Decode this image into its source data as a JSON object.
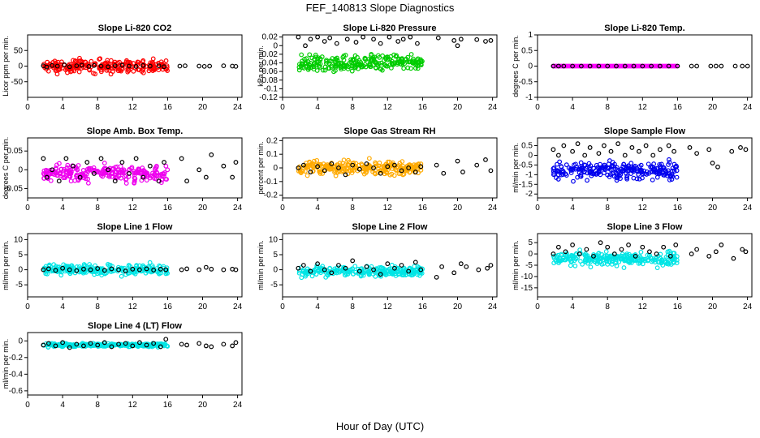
{
  "title": "FEF_140813  Slope Diagnostics",
  "xlabel": "Hour of Day (UTC)",
  "chart_data": [
    {
      "type": "scatter",
      "title": "Slope Li-820 CO2",
      "ylabel": "Licor ppm per min.",
      "xlim": [
        0,
        24.5
      ],
      "ylim": [
        -100,
        100
      ],
      "xticks": [
        0,
        4,
        8,
        12,
        16,
        20,
        24
      ],
      "yticks": [
        -50,
        0,
        50
      ],
      "color": "#ff0000",
      "center": 0,
      "spread": 30,
      "band": 10,
      "black_points": [
        [
          1.8,
          1
        ],
        [
          2.2,
          -3
        ],
        [
          2.8,
          2
        ],
        [
          3.4,
          0
        ],
        [
          4.2,
          4
        ],
        [
          4.8,
          -2
        ],
        [
          5.6,
          1
        ],
        [
          6.2,
          3
        ],
        [
          7.0,
          -1
        ],
        [
          7.6,
          2
        ],
        [
          8.4,
          0
        ],
        [
          9.2,
          -2
        ],
        [
          10.0,
          1
        ],
        [
          10.8,
          3
        ],
        [
          11.6,
          0
        ],
        [
          12.4,
          -1
        ],
        [
          13.2,
          2
        ],
        [
          14.0,
          0
        ],
        [
          15.0,
          1
        ],
        [
          15.6,
          -2
        ],
        [
          17.4,
          0
        ],
        [
          18.0,
          1
        ],
        [
          19.6,
          0
        ],
        [
          20.2,
          -1
        ],
        [
          20.8,
          0
        ],
        [
          22.4,
          1
        ],
        [
          23.4,
          0
        ],
        [
          23.8,
          -1
        ]
      ]
    },
    {
      "type": "scatter",
      "title": "Slope Li-820 Pressure",
      "ylabel": "kPa per min.",
      "xlim": [
        0,
        24.5
      ],
      "ylim": [
        -0.12,
        0.025
      ],
      "xticks": [
        0,
        4,
        8,
        12,
        16,
        20,
        24
      ],
      "yticks": [
        -0.12,
        -0.1,
        -0.08,
        -0.06,
        -0.04,
        -0.02,
        0,
        0.02
      ],
      "color": "#00cc00",
      "center": -0.04,
      "spread": 0.025,
      "band": 0.01,
      "black_points": [
        [
          1.8,
          0.02
        ],
        [
          2.6,
          0.0
        ],
        [
          3.2,
          0.015
        ],
        [
          4.0,
          0.02
        ],
        [
          4.8,
          0.01
        ],
        [
          5.4,
          0.018
        ],
        [
          6.2,
          0.005
        ],
        [
          7.4,
          0.015
        ],
        [
          8.4,
          0.008
        ],
        [
          9.2,
          0.02
        ],
        [
          10.4,
          0.015
        ],
        [
          11.2,
          0.005
        ],
        [
          12.2,
          0.02
        ],
        [
          13.2,
          0.01
        ],
        [
          13.8,
          0.015
        ],
        [
          14.6,
          0.02
        ],
        [
          15.4,
          0.005
        ],
        [
          17.8,
          0.018
        ],
        [
          19.6,
          0.012
        ],
        [
          20.4,
          0.015
        ],
        [
          20.0,
          0.0
        ],
        [
          22.2,
          0.014
        ],
        [
          23.2,
          0.01
        ],
        [
          23.8,
          0.012
        ]
      ]
    },
    {
      "type": "scatter",
      "title": "Slope Li-820 Temp.",
      "ylabel": "degrees C per min.",
      "xlim": [
        0,
        24.5
      ],
      "ylim": [
        -1,
        1
      ],
      "xticks": [
        0,
        4,
        8,
        12,
        16,
        20,
        24
      ],
      "yticks": [
        -1,
        -0.5,
        0,
        0.5,
        1
      ],
      "color": "#ff00ff",
      "center": 0,
      "spread": 0.0,
      "band": 0.0,
      "black_points": [
        [
          1.8,
          0
        ],
        [
          2.4,
          0
        ],
        [
          3.0,
          0
        ],
        [
          4.0,
          0
        ],
        [
          5.0,
          0
        ],
        [
          6.0,
          0
        ],
        [
          7.0,
          0
        ],
        [
          8.0,
          0
        ],
        [
          9.0,
          0
        ],
        [
          10.0,
          0
        ],
        [
          11.0,
          0
        ],
        [
          12.0,
          0
        ],
        [
          13.0,
          0
        ],
        [
          14.0,
          0
        ],
        [
          15.0,
          0
        ],
        [
          16.0,
          0
        ],
        [
          17.6,
          0
        ],
        [
          18.2,
          0
        ],
        [
          19.8,
          0
        ],
        [
          20.4,
          0
        ],
        [
          21.0,
          0
        ],
        [
          22.6,
          0
        ],
        [
          23.4,
          0
        ],
        [
          24.0,
          0
        ]
      ]
    },
    {
      "type": "scatter",
      "title": "Slope Amb. Box Temp.",
      "ylabel": "degrees C per min.",
      "xlim": [
        0,
        24.5
      ],
      "ylim": [
        -0.075,
        0.085
      ],
      "xticks": [
        0,
        4,
        8,
        12,
        16,
        20,
        24
      ],
      "yticks": [
        -0.05,
        0,
        0.05
      ],
      "color": "#ee00ee",
      "center": -0.01,
      "spread": 0.03,
      "band": 0.01,
      "black_points": [
        [
          1.8,
          0.03
        ],
        [
          2.2,
          -0.02
        ],
        [
          2.8,
          0.0
        ],
        [
          3.6,
          -0.03
        ],
        [
          4.4,
          0.03
        ],
        [
          5.2,
          0.01
        ],
        [
          6.0,
          -0.02
        ],
        [
          6.8,
          0.02
        ],
        [
          7.6,
          -0.01
        ],
        [
          8.4,
          0.03
        ],
        [
          9.2,
          0.0
        ],
        [
          10.0,
          -0.03
        ],
        [
          10.8,
          0.02
        ],
        [
          11.6,
          -0.01
        ],
        [
          12.4,
          0.03
        ],
        [
          13.2,
          -0.02
        ],
        [
          14.0,
          0.01
        ],
        [
          15.0,
          -0.03
        ],
        [
          15.6,
          0.02
        ],
        [
          17.6,
          0.03
        ],
        [
          18.2,
          -0.03
        ],
        [
          19.6,
          0.0
        ],
        [
          20.4,
          -0.02
        ],
        [
          21.0,
          0.04
        ],
        [
          22.4,
          0.01
        ],
        [
          23.4,
          -0.02
        ],
        [
          23.8,
          0.02
        ]
      ]
    },
    {
      "type": "scatter",
      "title": "Slope Gas Stream RH",
      "ylabel": "percent per min.",
      "xlim": [
        0,
        24.5
      ],
      "ylim": [
        -0.22,
        0.22
      ],
      "xticks": [
        0,
        4,
        8,
        12,
        16,
        20,
        24
      ],
      "yticks": [
        -0.2,
        -0.1,
        0,
        0.1,
        0.2
      ],
      "color": "#ffaa00",
      "center": 0.0,
      "spread": 0.07,
      "band": 0.02,
      "black_points": [
        [
          1.8,
          0.0
        ],
        [
          2.4,
          0.02
        ],
        [
          3.2,
          -0.03
        ],
        [
          4.0,
          0.01
        ],
        [
          4.8,
          -0.02
        ],
        [
          5.6,
          0.03
        ],
        [
          6.4,
          0.0
        ],
        [
          7.2,
          -0.05
        ],
        [
          8.0,
          0.02
        ],
        [
          8.8,
          -0.01
        ],
        [
          9.6,
          0.03
        ],
        [
          10.4,
          0.0
        ],
        [
          11.2,
          -0.04
        ],
        [
          12.0,
          0.01
        ],
        [
          12.8,
          0.02
        ],
        [
          13.6,
          -0.02
        ],
        [
          14.4,
          0.0
        ],
        [
          15.2,
          -0.03
        ],
        [
          15.8,
          0.01
        ],
        [
          17.6,
          0.02
        ],
        [
          18.4,
          -0.04
        ],
        [
          20.0,
          0.05
        ],
        [
          20.6,
          -0.03
        ],
        [
          22.2,
          0.02
        ],
        [
          23.2,
          0.06
        ],
        [
          23.8,
          -0.02
        ]
      ]
    },
    {
      "type": "scatter",
      "title": "Slope Sample Flow",
      "ylabel": "ml/min per min.",
      "xlim": [
        0,
        24.5
      ],
      "ylim": [
        -2.2,
        0.9
      ],
      "xticks": [
        0,
        4,
        8,
        12,
        16,
        20,
        24
      ],
      "yticks": [
        -2,
        -1.5,
        -1,
        -0.5,
        0,
        0.5
      ],
      "color": "#0000ee",
      "center": -0.8,
      "spread": 0.6,
      "band": 0.2,
      "black_points": [
        [
          1.8,
          0.3
        ],
        [
          2.4,
          0.0
        ],
        [
          3.0,
          0.5
        ],
        [
          4.0,
          0.2
        ],
        [
          4.6,
          0.6
        ],
        [
          5.4,
          0.0
        ],
        [
          6.0,
          0.4
        ],
        [
          7.0,
          0.1
        ],
        [
          7.6,
          0.5
        ],
        [
          8.4,
          0.2
        ],
        [
          9.2,
          0.6
        ],
        [
          10.0,
          0.0
        ],
        [
          10.8,
          0.4
        ],
        [
          11.6,
          0.2
        ],
        [
          12.4,
          0.5
        ],
        [
          13.2,
          0.0
        ],
        [
          14.0,
          0.3
        ],
        [
          15.0,
          0.5
        ],
        [
          15.6,
          0.2
        ],
        [
          17.4,
          0.4
        ],
        [
          18.2,
          0.1
        ],
        [
          19.6,
          0.3
        ],
        [
          20.0,
          -0.4
        ],
        [
          20.6,
          -0.6
        ],
        [
          22.2,
          0.2
        ],
        [
          23.2,
          0.4
        ],
        [
          23.8,
          0.3
        ]
      ]
    },
    {
      "type": "scatter",
      "title": "Slope Line 1 Flow",
      "ylabel": "ml/min per min.",
      "xlim": [
        0,
        24.5
      ],
      "ylim": [
        -9,
        12
      ],
      "xticks": [
        0,
        4,
        8,
        12,
        16,
        20,
        24
      ],
      "yticks": [
        -5,
        0,
        5,
        10
      ],
      "color": "#00e5e5",
      "center": 0,
      "spread": 2.5,
      "band": 0.8,
      "black_points": [
        [
          1.8,
          0
        ],
        [
          2.4,
          0.3
        ],
        [
          3.2,
          -0.2
        ],
        [
          4.0,
          0.5
        ],
        [
          4.8,
          0
        ],
        [
          5.6,
          -0.3
        ],
        [
          6.4,
          0.2
        ],
        [
          7.2,
          0
        ],
        [
          8.0,
          0.4
        ],
        [
          8.8,
          -0.2
        ],
        [
          9.6,
          0.3
        ],
        [
          10.4,
          0
        ],
        [
          11.2,
          -0.4
        ],
        [
          12.0,
          0.2
        ],
        [
          12.8,
          0
        ],
        [
          13.6,
          0.3
        ],
        [
          14.4,
          -0.1
        ],
        [
          15.2,
          0.2
        ],
        [
          15.8,
          0
        ],
        [
          17.6,
          0
        ],
        [
          18.2,
          0.3
        ],
        [
          19.6,
          0
        ],
        [
          20.4,
          0.8
        ],
        [
          21.0,
          0.2
        ],
        [
          22.4,
          0
        ],
        [
          23.4,
          0.2
        ],
        [
          23.8,
          0
        ]
      ]
    },
    {
      "type": "scatter",
      "title": "Slope Line 2 Flow",
      "ylabel": "ml/min per min.",
      "xlim": [
        0,
        24.5
      ],
      "ylim": [
        -9,
        12
      ],
      "xticks": [
        0,
        4,
        8,
        12,
        16,
        20,
        24
      ],
      "yticks": [
        -5,
        0,
        5,
        10
      ],
      "color": "#00e5e5",
      "center": -0.5,
      "spread": 2.5,
      "band": 0.8,
      "black_points": [
        [
          1.8,
          0.5
        ],
        [
          2.4,
          1.5
        ],
        [
          3.2,
          -0.5
        ],
        [
          4.0,
          2.0
        ],
        [
          4.8,
          0
        ],
        [
          5.6,
          -1.0
        ],
        [
          6.4,
          1.5
        ],
        [
          7.2,
          0.5
        ],
        [
          8.0,
          3.0
        ],
        [
          8.8,
          -0.5
        ],
        [
          9.6,
          1.0
        ],
        [
          10.4,
          0
        ],
        [
          11.2,
          -1.5
        ],
        [
          12.0,
          2.0
        ],
        [
          12.8,
          0.5
        ],
        [
          13.6,
          1.5
        ],
        [
          14.4,
          -0.5
        ],
        [
          15.2,
          2.5
        ],
        [
          15.8,
          0
        ],
        [
          17.6,
          -2.5
        ],
        [
          18.2,
          1.0
        ],
        [
          19.6,
          -1.0
        ],
        [
          20.4,
          2.0
        ],
        [
          21.0,
          1.0
        ],
        [
          22.4,
          0
        ],
        [
          23.4,
          0.5
        ],
        [
          23.8,
          1.5
        ]
      ]
    },
    {
      "type": "scatter",
      "title": "Slope Line 3 Flow",
      "ylabel": "ml/min per min.",
      "xlim": [
        0,
        24.5
      ],
      "ylim": [
        -19,
        9
      ],
      "xticks": [
        0,
        4,
        8,
        12,
        16,
        20,
        24
      ],
      "yticks": [
        -15,
        -10,
        -5,
        0,
        5
      ],
      "color": "#00e5e5",
      "center": -2,
      "spread": 4,
      "band": 1.5,
      "black_points": [
        [
          1.8,
          0
        ],
        [
          2.4,
          3
        ],
        [
          3.2,
          1
        ],
        [
          4.0,
          4
        ],
        [
          4.8,
          0
        ],
        [
          5.6,
          2
        ],
        [
          6.4,
          -1
        ],
        [
          7.2,
          5
        ],
        [
          8.0,
          3
        ],
        [
          8.8,
          0
        ],
        [
          9.6,
          2
        ],
        [
          10.4,
          4
        ],
        [
          11.2,
          -1
        ],
        [
          12.0,
          3
        ],
        [
          12.8,
          1
        ],
        [
          13.6,
          0
        ],
        [
          14.4,
          3
        ],
        [
          15.2,
          -1
        ],
        [
          15.8,
          4
        ],
        [
          17.6,
          0
        ],
        [
          18.2,
          2
        ],
        [
          19.6,
          -1
        ],
        [
          20.4,
          1
        ],
        [
          21.0,
          4
        ],
        [
          22.4,
          -2
        ],
        [
          23.4,
          2
        ],
        [
          23.8,
          1
        ]
      ]
    },
    {
      "type": "scatter",
      "title": "Slope Line 4 (LT) Flow",
      "ylabel": "ml/min per min.",
      "xlim": [
        0,
        24.5
      ],
      "ylim": [
        -0.65,
        0.1
      ],
      "xticks": [
        0,
        4,
        8,
        12,
        16,
        20,
        24
      ],
      "yticks": [
        -0.6,
        -0.4,
        -0.2,
        0
      ],
      "color": "#00e5e5",
      "center": -0.05,
      "spread": 0.03,
      "band": 0.015,
      "black_points": [
        [
          1.8,
          -0.05
        ],
        [
          2.4,
          -0.03
        ],
        [
          3.2,
          -0.06
        ],
        [
          4.0,
          -0.02
        ],
        [
          4.8,
          -0.08
        ],
        [
          5.6,
          -0.04
        ],
        [
          6.4,
          -0.06
        ],
        [
          7.2,
          -0.03
        ],
        [
          8.0,
          -0.05
        ],
        [
          8.8,
          -0.02
        ],
        [
          9.6,
          -0.07
        ],
        [
          10.4,
          -0.04
        ],
        [
          11.2,
          -0.03
        ],
        [
          12.0,
          -0.06
        ],
        [
          12.8,
          -0.02
        ],
        [
          13.6,
          -0.05
        ],
        [
          14.4,
          -0.03
        ],
        [
          15.2,
          -0.07
        ],
        [
          15.8,
          0.02
        ],
        [
          17.6,
          -0.04
        ],
        [
          18.2,
          -0.05
        ],
        [
          19.6,
          -0.03
        ],
        [
          20.4,
          -0.06
        ],
        [
          21.0,
          -0.07
        ],
        [
          22.4,
          -0.04
        ],
        [
          23.4,
          -0.06
        ],
        [
          23.8,
          -0.02
        ]
      ]
    }
  ]
}
